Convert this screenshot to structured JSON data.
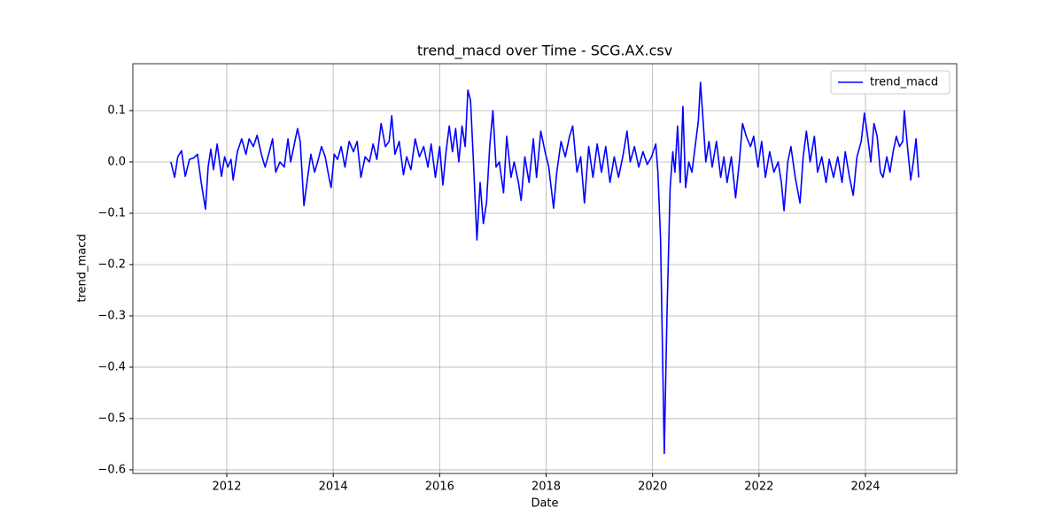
{
  "chart_data": {
    "type": "line",
    "title": "trend_macd over Time - SCG.AX.csv",
    "xlabel": "Date",
    "ylabel": "trend_macd",
    "x": [
      2010.95,
      2011.02,
      2011.08,
      2011.15,
      2011.22,
      2011.3,
      2011.38,
      2011.45,
      2011.52,
      2011.6,
      2011.65,
      2011.7,
      2011.75,
      2011.82,
      2011.9,
      2011.96,
      2012.02,
      2012.08,
      2012.12,
      2012.2,
      2012.28,
      2012.36,
      2012.42,
      2012.5,
      2012.57,
      2012.65,
      2012.72,
      2012.8,
      2012.86,
      2012.92,
      2013.0,
      2013.08,
      2013.15,
      2013.2,
      2013.26,
      2013.33,
      2013.38,
      2013.45,
      2013.52,
      2013.58,
      2013.65,
      2013.72,
      2013.78,
      2013.85,
      2013.92,
      2013.96,
      2014.02,
      2014.08,
      2014.15,
      2014.22,
      2014.3,
      2014.38,
      2014.45,
      2014.52,
      2014.6,
      2014.68,
      2014.75,
      2014.82,
      2014.9,
      2014.98,
      2015.05,
      2015.1,
      2015.16,
      2015.24,
      2015.32,
      2015.38,
      2015.46,
      2015.54,
      2015.62,
      2015.7,
      2015.78,
      2015.84,
      2015.92,
      2016.0,
      2016.06,
      2016.12,
      2016.18,
      2016.24,
      2016.3,
      2016.36,
      2016.42,
      2016.48,
      2016.53,
      2016.58,
      2016.63,
      2016.7,
      2016.76,
      2016.82,
      2016.88,
      2016.94,
      2017.0,
      2017.06,
      2017.12,
      2017.2,
      2017.26,
      2017.34,
      2017.4,
      2017.48,
      2017.53,
      2017.6,
      2017.68,
      2017.76,
      2017.82,
      2017.9,
      2017.98,
      2018.05,
      2018.14,
      2018.2,
      2018.28,
      2018.36,
      2018.44,
      2018.5,
      2018.58,
      2018.65,
      2018.72,
      2018.8,
      2018.88,
      2018.96,
      2019.04,
      2019.12,
      2019.2,
      2019.28,
      2019.36,
      2019.44,
      2019.52,
      2019.58,
      2019.66,
      2019.74,
      2019.82,
      2019.9,
      2019.98,
      2020.06,
      2020.1,
      2020.15,
      2020.22,
      2020.27,
      2020.33,
      2020.38,
      2020.42,
      2020.47,
      2020.52,
      2020.57,
      2020.62,
      2020.68,
      2020.74,
      2020.8,
      2020.86,
      2020.9,
      2020.95,
      2021.0,
      2021.06,
      2021.12,
      2021.2,
      2021.28,
      2021.34,
      2021.4,
      2021.48,
      2021.56,
      2021.63,
      2021.69,
      2021.76,
      2021.84,
      2021.9,
      2021.98,
      2022.05,
      2022.12,
      2022.2,
      2022.28,
      2022.36,
      2022.42,
      2022.47,
      2022.54,
      2022.6,
      2022.68,
      2022.77,
      2022.83,
      2022.89,
      2022.96,
      2023.04,
      2023.1,
      2023.18,
      2023.26,
      2023.32,
      2023.4,
      2023.48,
      2023.56,
      2023.62,
      2023.7,
      2023.77,
      2023.84,
      2023.92,
      2023.98,
      2024.04,
      2024.1,
      2024.16,
      2024.22,
      2024.28,
      2024.33,
      2024.4,
      2024.46,
      2024.52,
      2024.58,
      2024.64,
      2024.7,
      2024.73,
      2024.78,
      2024.85,
      2024.9,
      2024.95,
      2025.0
    ],
    "series": [
      {
        "name": "trend_macd",
        "color": "#0000ff",
        "values": [
          0.0,
          -0.03,
          0.01,
          0.022,
          -0.028,
          0.005,
          0.008,
          0.015,
          -0.04,
          -0.092,
          -0.01,
          0.025,
          -0.015,
          0.035,
          -0.028,
          0.01,
          -0.01,
          0.005,
          -0.035,
          0.02,
          0.045,
          0.015,
          0.045,
          0.03,
          0.052,
          0.015,
          -0.01,
          0.02,
          0.045,
          -0.02,
          0.0,
          -0.01,
          0.045,
          0.0,
          0.03,
          0.065,
          0.04,
          -0.085,
          -0.03,
          0.015,
          -0.02,
          0.005,
          0.03,
          0.01,
          -0.03,
          -0.05,
          0.015,
          0.005,
          0.03,
          -0.01,
          0.04,
          0.02,
          0.04,
          -0.03,
          0.01,
          0.0,
          0.035,
          0.005,
          0.075,
          0.03,
          0.04,
          0.09,
          0.015,
          0.04,
          -0.025,
          0.01,
          -0.015,
          0.045,
          0.01,
          0.03,
          -0.01,
          0.035,
          -0.03,
          0.03,
          -0.045,
          0.02,
          0.07,
          0.02,
          0.065,
          0.0,
          0.07,
          0.03,
          0.14,
          0.12,
          0.01,
          -0.152,
          -0.04,
          -0.12,
          -0.08,
          0.03,
          0.1,
          -0.01,
          0.0,
          -0.06,
          0.05,
          -0.03,
          0.0,
          -0.04,
          -0.075,
          0.01,
          -0.04,
          0.045,
          -0.03,
          0.06,
          0.02,
          -0.01,
          -0.09,
          -0.02,
          0.04,
          0.01,
          0.05,
          0.07,
          -0.02,
          0.01,
          -0.08,
          0.03,
          -0.03,
          0.035,
          -0.02,
          0.03,
          -0.04,
          0.01,
          -0.03,
          0.01,
          0.06,
          0.0,
          0.03,
          -0.01,
          0.02,
          -0.005,
          0.01,
          0.035,
          -0.02,
          -0.15,
          -0.568,
          -0.3,
          -0.05,
          0.02,
          -0.02,
          0.07,
          -0.04,
          0.108,
          -0.05,
          0.0,
          -0.02,
          0.03,
          0.08,
          0.155,
          0.08,
          0.0,
          0.04,
          -0.01,
          0.04,
          -0.03,
          0.01,
          -0.04,
          0.01,
          -0.07,
          0.0,
          0.075,
          0.05,
          0.03,
          0.05,
          -0.01,
          0.04,
          -0.03,
          0.02,
          -0.02,
          0.0,
          -0.04,
          -0.095,
          0.0,
          0.03,
          -0.03,
          -0.08,
          0.01,
          0.06,
          0.0,
          0.05,
          -0.02,
          0.01,
          -0.04,
          0.005,
          -0.03,
          0.01,
          -0.04,
          0.02,
          -0.03,
          -0.065,
          0.01,
          0.04,
          0.095,
          0.05,
          0.0,
          0.075,
          0.05,
          -0.02,
          -0.03,
          0.01,
          -0.02,
          0.02,
          0.05,
          0.03,
          0.04,
          0.1,
          0.04,
          -0.035,
          0.0,
          0.045,
          -0.03
        ]
      }
    ],
    "xlim": [
      2010.236,
      2025.714
    ],
    "ylim": [
      -0.607,
      0.1914
    ],
    "xticks": [
      2012,
      2014,
      2016,
      2018,
      2020,
      2022,
      2024
    ],
    "yticks": [
      {
        "value": -0.6,
        "label": "−0.6"
      },
      {
        "value": -0.5,
        "label": "−0.5"
      },
      {
        "value": -0.4,
        "label": "−0.4"
      },
      {
        "value": -0.3,
        "label": "−0.3"
      },
      {
        "value": -0.2,
        "label": "−0.2"
      },
      {
        "value": -0.1,
        "label": "−0.1"
      },
      {
        "value": 0,
        "label": "0.0"
      },
      0.1
    ],
    "grid": true,
    "legend": "upper right"
  }
}
